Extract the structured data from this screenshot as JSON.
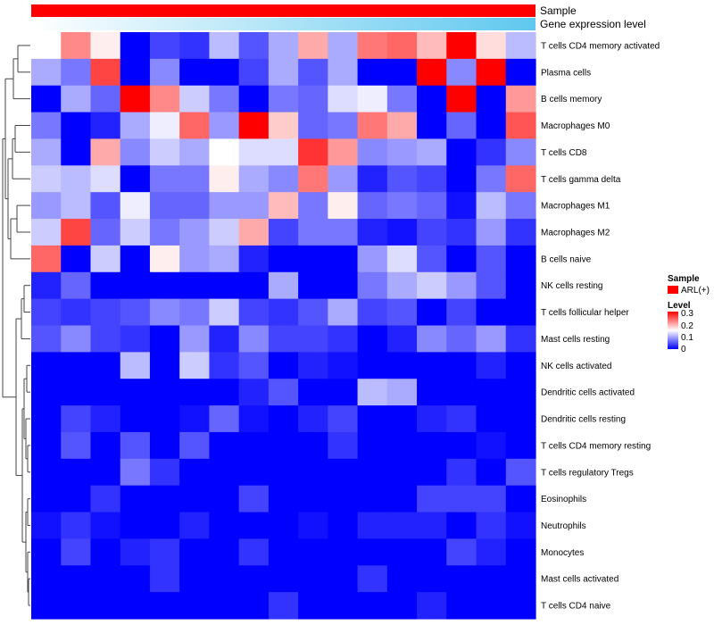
{
  "chart_data": {
    "type": "heatmap",
    "title": "",
    "top_annotations": [
      "Sample",
      "Gene expression level"
    ],
    "sample_color": "#ff0000",
    "level_gradient_stops": [
      "#0000ff",
      "#ffffff",
      "#ff0000"
    ],
    "rows": [
      "T cells CD4 memory activated",
      "Plasma cells",
      "B cells memory",
      "Macrophages M0",
      "T cells CD8",
      "T cells gamma delta",
      "Macrophages M1",
      "Macrophages M2",
      "B cells naive",
      "NK cells resting",
      "T cells follicular helper",
      "Mast cells resting",
      "NK cells activated",
      "Dendritic cells activated",
      "Dendritic cells resting",
      "T cells CD4 memory resting",
      "T cells regulatory  Tregs",
      "Eosinophils",
      "Neutrophils",
      "Monocytes",
      "Mast cells activated",
      "T cells CD4 naive"
    ],
    "values": [
      [
        0.15,
        0.22,
        0.16,
        0.0,
        0.04,
        0.03,
        0.11,
        0.05,
        0.1,
        0.2,
        0.1,
        0.23,
        0.24,
        0.19,
        0.32,
        0.17,
        0.11
      ],
      [
        0.1,
        0.07,
        0.26,
        0.0,
        0.08,
        0.0,
        0.0,
        0.04,
        0.1,
        0.05,
        0.1,
        0.0,
        0.0,
        0.31,
        0.08,
        0.32,
        0.0
      ],
      [
        0.0,
        0.1,
        0.06,
        0.32,
        0.22,
        0.12,
        0.07,
        0.0,
        0.07,
        0.06,
        0.13,
        0.14,
        0.07,
        0.0,
        0.32,
        0.0,
        0.21
      ],
      [
        0.07,
        0.0,
        0.02,
        0.1,
        0.14,
        0.24,
        0.09,
        0.33,
        0.18,
        0.06,
        0.07,
        0.23,
        0.2,
        0.0,
        0.06,
        0.0,
        0.25
      ],
      [
        0.1,
        0.0,
        0.2,
        0.08,
        0.12,
        0.1,
        0.15,
        0.13,
        0.13,
        0.27,
        0.21,
        0.08,
        0.09,
        0.1,
        0.0,
        0.03,
        0.08
      ],
      [
        0.12,
        0.11,
        0.13,
        0.0,
        0.07,
        0.07,
        0.16,
        0.1,
        0.08,
        0.23,
        0.09,
        0.02,
        0.05,
        0.04,
        0.0,
        0.07,
        0.24
      ],
      [
        0.09,
        0.11,
        0.05,
        0.14,
        0.06,
        0.06,
        0.09,
        0.09,
        0.19,
        0.07,
        0.16,
        0.06,
        0.07,
        0.06,
        0.01,
        0.11,
        0.07
      ],
      [
        0.12,
        0.26,
        0.06,
        0.12,
        0.07,
        0.09,
        0.12,
        0.2,
        0.04,
        0.07,
        0.07,
        0.02,
        0.01,
        0.04,
        0.03,
        0.09,
        0.03
      ],
      [
        0.24,
        0.0,
        0.12,
        0.0,
        0.16,
        0.09,
        0.1,
        0.02,
        0.0,
        0.0,
        0.0,
        0.09,
        0.13,
        0.05,
        0.0,
        0.05,
        0.0
      ],
      [
        0.02,
        0.06,
        0.0,
        0.0,
        0.0,
        0.0,
        0.0,
        0.0,
        0.1,
        0.0,
        0.0,
        0.07,
        0.1,
        0.12,
        0.09,
        0.05,
        0.0
      ],
      [
        0.04,
        0.03,
        0.04,
        0.05,
        0.08,
        0.07,
        0.12,
        0.04,
        0.03,
        0.05,
        0.1,
        0.04,
        0.05,
        0.0,
        0.04,
        0.0,
        0.0
      ],
      [
        0.05,
        0.08,
        0.04,
        0.03,
        0.0,
        0.09,
        0.02,
        0.08,
        0.04,
        0.04,
        0.03,
        0.0,
        0.02,
        0.08,
        0.06,
        0.09,
        0.03
      ],
      [
        0.0,
        0.0,
        0.0,
        0.11,
        0.0,
        0.12,
        0.03,
        0.05,
        0.0,
        0.02,
        0.01,
        0.0,
        0.0,
        0.0,
        0.0,
        0.02,
        0.0
      ],
      [
        0.0,
        0.0,
        0.0,
        0.0,
        0.0,
        0.0,
        0.0,
        0.02,
        0.05,
        0.0,
        0.0,
        0.11,
        0.1,
        0.0,
        0.0,
        0.0,
        0.0
      ],
      [
        0.0,
        0.04,
        0.02,
        0.0,
        0.0,
        0.01,
        0.06,
        0.01,
        0.0,
        0.02,
        0.04,
        0.0,
        0.0,
        0.02,
        0.03,
        0.0,
        0.0
      ],
      [
        0.0,
        0.05,
        0.0,
        0.05,
        0.0,
        0.05,
        0.0,
        0.0,
        0.0,
        0.0,
        0.03,
        0.0,
        0.0,
        0.0,
        0.0,
        0.01,
        0.0
      ],
      [
        0.0,
        0.0,
        0.0,
        0.07,
        0.03,
        0.0,
        0.0,
        0.0,
        0.0,
        0.0,
        0.0,
        0.0,
        0.0,
        0.0,
        0.03,
        0.0,
        0.05
      ],
      [
        0.0,
        0.0,
        0.03,
        0.0,
        0.0,
        0.0,
        0.0,
        0.04,
        0.0,
        0.0,
        0.0,
        0.0,
        0.0,
        0.04,
        0.04,
        0.04,
        0.0
      ],
      [
        0.01,
        0.03,
        0.01,
        0.0,
        0.0,
        0.02,
        0.0,
        0.0,
        0.0,
        0.01,
        0.0,
        0.02,
        0.02,
        0.02,
        0.0,
        0.03,
        0.01
      ],
      [
        0.0,
        0.04,
        0.0,
        0.02,
        0.03,
        0.0,
        0.0,
        0.03,
        0.0,
        0.0,
        0.0,
        0.0,
        0.0,
        0.0,
        0.04,
        0.02,
        0.0
      ],
      [
        0.0,
        0.0,
        0.0,
        0.0,
        0.03,
        0.0,
        0.0,
        0.0,
        0.0,
        0.0,
        0.0,
        0.03,
        0.0,
        0.0,
        0.0,
        0.0,
        0.0
      ],
      [
        0.0,
        0.0,
        0.0,
        0.0,
        0.0,
        0.0,
        0.0,
        0.0,
        0.03,
        0.0,
        0.0,
        0.0,
        0.0,
        0.02,
        0.0,
        0.0,
        0.0
      ]
    ],
    "color_range": [
      0,
      0.3
    ],
    "legend": {
      "sample_title": "Sample",
      "sample_label": "ARL(+)",
      "level_title": "Level",
      "ticks": [
        "0.3",
        "0.2",
        "0.1",
        "0"
      ]
    }
  }
}
